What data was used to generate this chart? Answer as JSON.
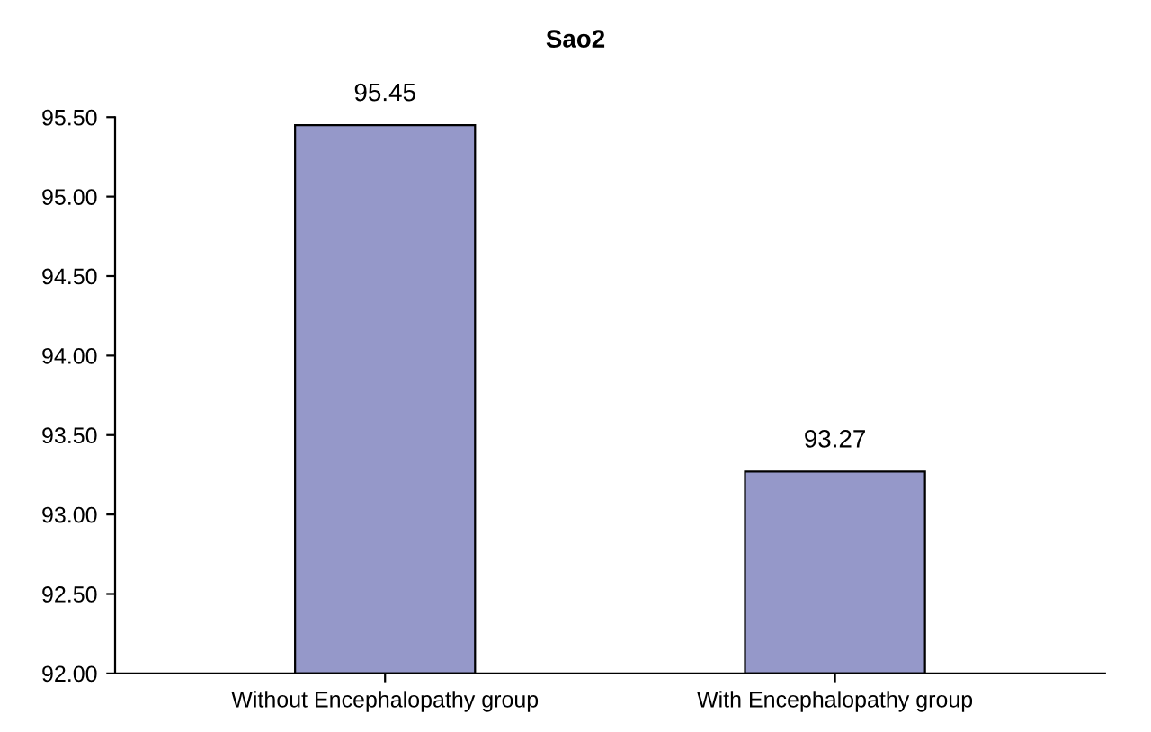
{
  "chart_data": {
    "type": "bar",
    "title": "Sao2",
    "categories": [
      "Without Encephalopathy group",
      "With Encephalopathy group"
    ],
    "values": [
      95.45,
      93.27
    ],
    "color": "#9598c9",
    "data_labels": true,
    "grid": false,
    "ylim": [
      92.0,
      95.5
    ],
    "yticks": [
      {
        "value": 92.0,
        "label": "92.00"
      },
      {
        "value": 92.5,
        "label": "92.50"
      },
      {
        "value": 93.0,
        "label": "93.00"
      },
      {
        "value": 93.5,
        "label": "93.50"
      },
      {
        "value": 94.0,
        "label": "94.00"
      },
      {
        "value": 94.5,
        "label": "94.50"
      },
      {
        "value": 95.0,
        "label": "95.00"
      },
      {
        "value": 95.5,
        "label": "95.50"
      }
    ]
  }
}
